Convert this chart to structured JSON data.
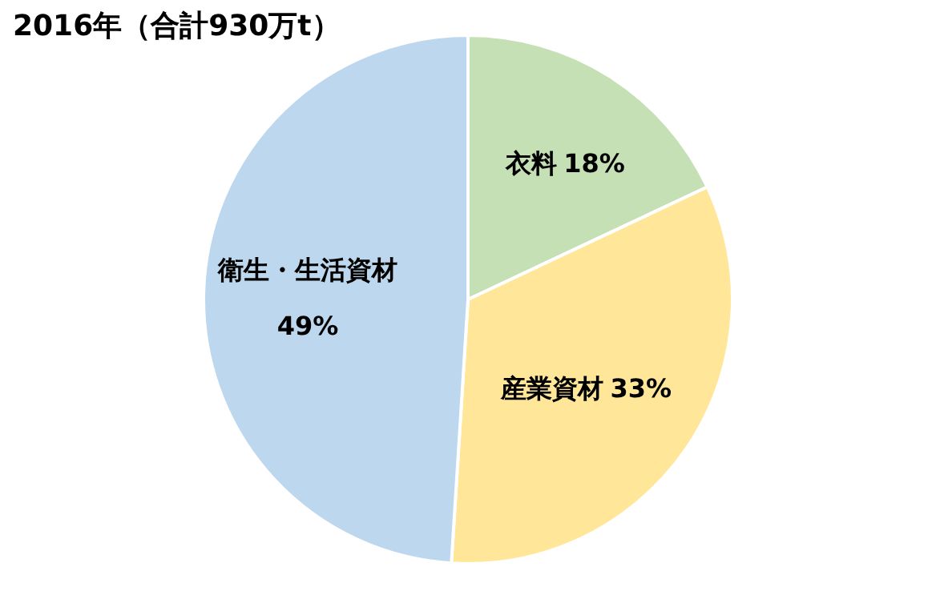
{
  "chart_data": {
    "type": "pie",
    "title": "2016年（合計930万t）",
    "categories": [
      "衣料",
      "産業資材",
      "衛生・生活資材"
    ],
    "values": [
      18,
      33,
      49
    ],
    "colors": [
      "#c5e0b4",
      "#ffe699",
      "#bdd7ee"
    ],
    "value_labels": [
      "18%",
      "33%",
      "49%"
    ],
    "legend": false
  }
}
